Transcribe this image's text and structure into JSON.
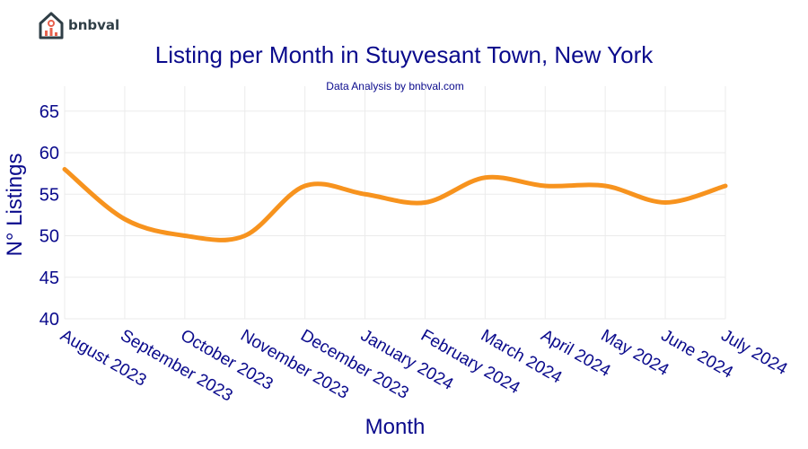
{
  "brand": {
    "name": "bnbval"
  },
  "chart_data": {
    "type": "line",
    "title": "Listing per Month in Stuyvesant Town, New York",
    "subtitle": "Data Analysis by bnbval.com",
    "xlabel": "Month",
    "ylabel": "N° Listings",
    "categories": [
      "August 2023",
      "September 2023",
      "October 2023",
      "November 2023",
      "December 2023",
      "January 2024",
      "February 2024",
      "March 2024",
      "April 2024",
      "May 2024",
      "June 2024",
      "July 2024"
    ],
    "series": [
      {
        "values": [
          58,
          52,
          50,
          50,
          56,
          55,
          54,
          57,
          56,
          56,
          54,
          56
        ],
        "color": "#f7931e"
      }
    ],
    "ylim": [
      40,
      68
    ],
    "yticks": [
      40,
      45,
      50,
      55,
      60,
      65
    ],
    "grid": true,
    "colors": {
      "text": "#0a0a8c",
      "grid": "#ebebeb"
    }
  }
}
